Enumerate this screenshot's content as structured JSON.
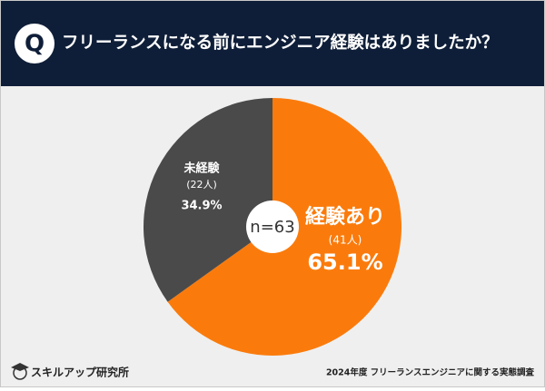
{
  "header": {
    "badge": "Q"
  },
  "chart_data": {
    "type": "pie",
    "title": "フリーランスになる前にエンジニア経験はありましたか？",
    "center_label": "n=63",
    "categories": [
      "経験あり",
      "未経験"
    ],
    "count_labels": [
      "(41人)",
      "(22人)"
    ],
    "values": [
      65.1,
      34.9
    ],
    "value_labels": [
      "65.1%",
      "34.9%"
    ],
    "colors": [
      "#fa7b0c",
      "#4a4a4a"
    ]
  },
  "footer": {
    "brand": "スキルアップ研究所",
    "source": "2024年度 フリーランスエンジニアに関する実態調査"
  }
}
